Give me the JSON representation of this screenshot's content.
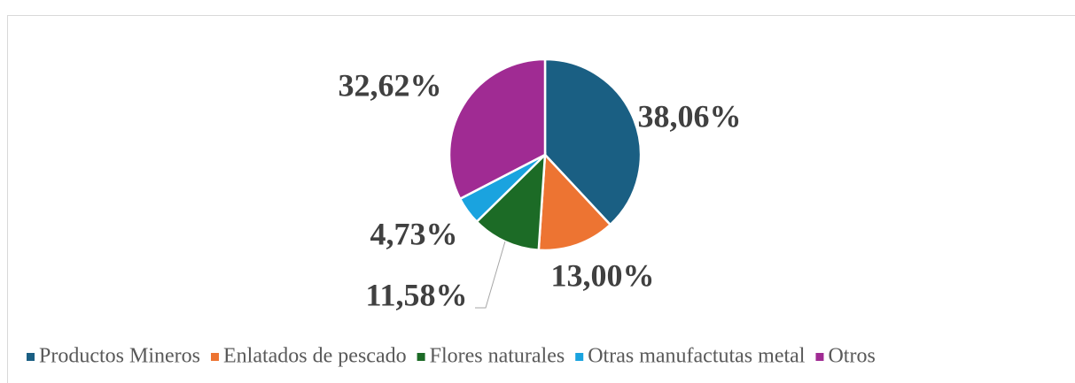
{
  "chart_data": {
    "type": "pie",
    "categories": [
      "Productos Mineros",
      "Enlatados de pescado",
      "Flores naturales",
      "Otras manufactutas metal",
      "Otros"
    ],
    "values": [
      38.06,
      13.0,
      11.58,
      4.73,
      32.62
    ],
    "value_labels": [
      "38,06%",
      "13,00%",
      "11,58%",
      "4,73%",
      "32,62%"
    ],
    "colors": [
      "#1a5f83",
      "#ed7432",
      "#1c6b26",
      "#1aa3df",
      "#a02b93"
    ],
    "legend": "bottom"
  }
}
